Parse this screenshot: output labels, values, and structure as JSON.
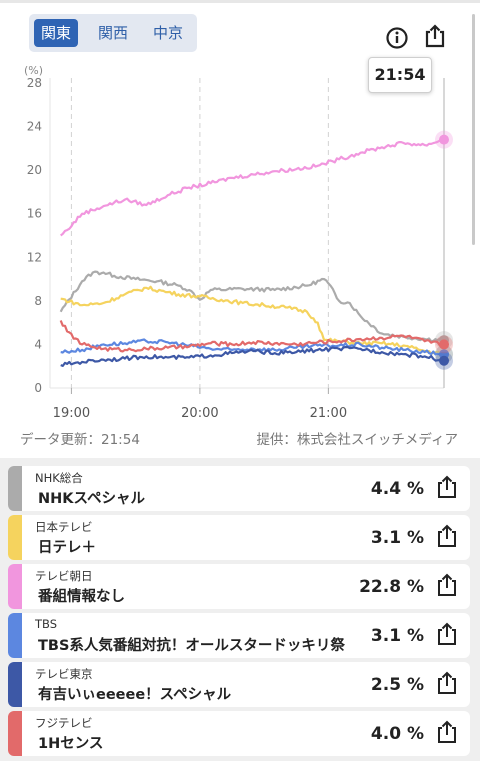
{
  "region_tabs": [
    "関東",
    "関西",
    "中京"
  ],
  "active_region": "関東",
  "tooltip_time": "21:54",
  "footer": {
    "update": "データ更新：21:54",
    "provider": "提供：株式会社スイッチメディア"
  },
  "chart_data": {
    "type": "line",
    "y_unit": "(%)",
    "ylim": [
      0,
      28
    ],
    "y_ticks": [
      "28",
      "24",
      "20",
      "16",
      "12",
      "8",
      "4",
      "0"
    ],
    "x_ticks": [
      "19:00",
      "20:00",
      "21:00"
    ],
    "grid": true,
    "series": [
      {
        "name": "NHK総合",
        "color": "#ababab",
        "end_value": 4.4,
        "x": [
          "18:55",
          "19:05",
          "19:10",
          "19:15",
          "19:20",
          "19:30",
          "19:40",
          "19:50",
          "19:55",
          "20:00",
          "20:05",
          "20:20",
          "20:35",
          "20:50",
          "20:58",
          "21:00",
          "21:05",
          "21:10",
          "21:15",
          "21:25",
          "21:35",
          "21:45",
          "21:54"
        ],
        "y": [
          7.0,
          9.8,
          10.6,
          10.6,
          10.3,
          10.0,
          9.8,
          9.4,
          9.0,
          8.1,
          9.0,
          9.1,
          9.0,
          9.4,
          10.0,
          9.6,
          8.0,
          7.8,
          6.6,
          5.0,
          4.7,
          4.5,
          4.4
        ]
      },
      {
        "name": "日本テレビ",
        "color": "#f5d35e",
        "end_value": 3.1,
        "x": [
          "18:55",
          "19:05",
          "19:15",
          "19:25",
          "19:35",
          "19:45",
          "19:50",
          "20:00",
          "20:10",
          "20:20",
          "20:30",
          "20:40",
          "20:50",
          "20:55",
          "20:58",
          "21:05",
          "21:15",
          "21:25",
          "21:35",
          "21:45",
          "21:54"
        ],
        "y": [
          8.2,
          7.6,
          7.8,
          8.6,
          9.2,
          8.8,
          8.6,
          8.4,
          8.1,
          7.8,
          7.6,
          7.4,
          7.0,
          6.0,
          4.4,
          4.3,
          4.1,
          4.1,
          3.9,
          3.4,
          3.1
        ]
      },
      {
        "name": "テレビ朝日",
        "color": "#f196de",
        "end_value": 22.8,
        "x": [
          "18:55",
          "18:58",
          "19:05",
          "19:15",
          "19:25",
          "19:35",
          "19:45",
          "19:55",
          "20:05",
          "20:15",
          "20:25",
          "20:35",
          "20:45",
          "20:55",
          "21:05",
          "21:15",
          "21:25",
          "21:35",
          "21:45",
          "21:54"
        ],
        "y": [
          14.0,
          14.5,
          16.0,
          16.7,
          17.3,
          16.8,
          17.7,
          18.4,
          18.8,
          19.3,
          19.6,
          19.9,
          20.1,
          20.4,
          21.0,
          21.6,
          22.1,
          22.5,
          22.3,
          22.8
        ]
      },
      {
        "name": "TBS",
        "color": "#5c87e0",
        "end_value": 3.1,
        "x": [
          "18:55",
          "19:05",
          "19:15",
          "19:25",
          "19:35",
          "19:45",
          "19:55",
          "20:05",
          "20:15",
          "20:25",
          "20:35",
          "20:45",
          "20:55",
          "21:05",
          "21:15",
          "21:25",
          "21:35",
          "21:45",
          "21:54"
        ],
        "y": [
          3.3,
          3.5,
          4.0,
          4.1,
          4.3,
          4.2,
          3.9,
          3.6,
          3.5,
          3.6,
          3.5,
          3.7,
          3.9,
          3.9,
          4.0,
          3.7,
          3.5,
          3.3,
          3.1
        ]
      },
      {
        "name": "テレビ東京",
        "color": "#3d58a6",
        "end_value": 2.5,
        "x": [
          "18:55",
          "19:05",
          "19:15",
          "19:25",
          "19:35",
          "19:45",
          "19:55",
          "20:05",
          "20:15",
          "20:25",
          "20:35",
          "20:45",
          "20:55",
          "21:05",
          "21:15",
          "21:25",
          "21:35",
          "21:45",
          "21:54"
        ],
        "y": [
          2.1,
          2.4,
          2.6,
          2.7,
          2.9,
          2.8,
          2.8,
          3.0,
          3.2,
          3.4,
          3.2,
          3.3,
          3.5,
          3.6,
          3.6,
          3.3,
          3.1,
          2.9,
          2.5
        ]
      },
      {
        "name": "フジテレビ",
        "color": "#e26a6a",
        "end_value": 4.0,
        "x": [
          "18:55",
          "18:58",
          "19:05",
          "19:15",
          "19:25",
          "19:35",
          "19:45",
          "19:55",
          "20:05",
          "20:15",
          "20:25",
          "20:35",
          "20:45",
          "20:55",
          "21:05",
          "21:15",
          "21:25",
          "21:35",
          "21:45",
          "21:54"
        ],
        "y": [
          6.2,
          5.2,
          4.0,
          3.6,
          3.5,
          3.6,
          3.7,
          3.8,
          4.1,
          4.0,
          4.2,
          4.1,
          4.0,
          4.2,
          4.3,
          4.5,
          4.6,
          4.8,
          4.3,
          4.0
        ]
      }
    ]
  },
  "ratings": [
    {
      "channel": "NHK総合",
      "program": "NHKスペシャル",
      "rating": "4.4 %",
      "color": "#ababab"
    },
    {
      "channel": "日本テレビ",
      "program": "日テレ＋",
      "rating": "3.1 %",
      "color": "#f5d35e"
    },
    {
      "channel": "テレビ朝日",
      "program": "番組情報なし",
      "rating": "22.8 %",
      "color": "#f196de"
    },
    {
      "channel": "TBS",
      "program": "TBS系人気番組対抗！オールスタードッキリ祭",
      "rating": "3.1 %",
      "color": "#5c87e0"
    },
    {
      "channel": "テレビ東京",
      "program": "有吉いぃeeeee！スペシャル",
      "rating": "2.5 %",
      "color": "#3d58a6"
    },
    {
      "channel": "フジテレビ",
      "program": "1Hセンス",
      "rating": "4.0 %",
      "color": "#e26a6a"
    }
  ],
  "icons": {
    "info": "info-icon",
    "share": "share-icon"
  }
}
